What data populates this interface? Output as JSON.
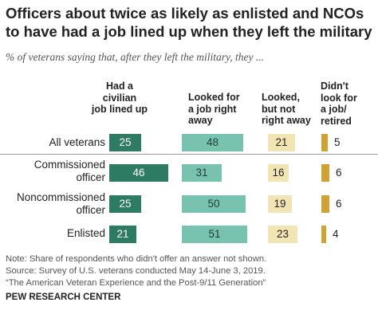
{
  "title": "Officers about twice as likely as enlisted and NCOs to have had a job lined up when they left the military",
  "subtitle": "% of veterans saying that, after they left the military, they ...",
  "colors": {
    "lined_up": "#2e7b64",
    "looked_right_away": "#78c2b0",
    "looked_not_right_away": "#f2e4b3",
    "didnt_look": "#cfa233"
  },
  "chart_data": {
    "type": "bar",
    "stacked": false,
    "categories": [
      "All veterans",
      "Commissioned officer",
      "Noncommissioned officer",
      "Enlisted"
    ],
    "series": [
      {
        "name": "Had a civilian job lined up",
        "values": [
          25,
          46,
          25,
          21
        ]
      },
      {
        "name": "Looked for a job right away",
        "values": [
          48,
          31,
          50,
          51
        ]
      },
      {
        "name": "Looked, but not right away",
        "values": [
          21,
          16,
          19,
          23
        ]
      },
      {
        "name": "Didn't look for a job/ retired",
        "values": [
          5,
          6,
          6,
          4
        ]
      }
    ]
  },
  "headers": [
    "Had a civilian job lined up",
    "Looked for a job right away",
    "Looked, but not right away",
    "Didn't look for a job/ retired"
  ],
  "notes": [
    "Note: Share of respondents who didn't offer an answer not shown.",
    "Source: Survey of U.S. veterans conducted May 14-June 3, 2019.",
    "“The American Veteran Experience and the Post-9/11 Generation”"
  ],
  "source_org": "PEW RESEARCH CENTER"
}
